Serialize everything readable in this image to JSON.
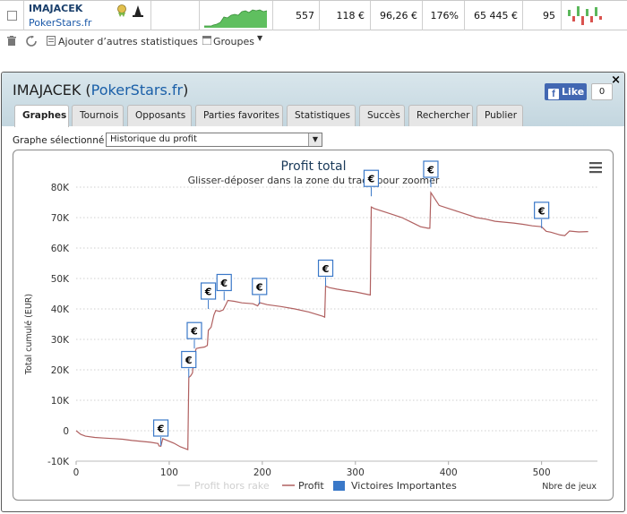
{
  "row": {
    "player_name": "IMAJACEK",
    "player_site": "PokerStars.fr",
    "games": "557",
    "avg_stake": "118 €",
    "avg_profit": "96,26 €",
    "roi": "176%",
    "total_profit": "65 445 €",
    "ability": "95",
    "sparkline_color": "#5fbf5f",
    "form_colors": [
      "#5cb85c",
      "#d9534f"
    ]
  },
  "toolbar": {
    "add_stats_label": "Ajouter d’autres statistiques",
    "groups_label": "Groupes"
  },
  "panel": {
    "title_player": "IMAJACEK",
    "title_site": "PokerStars.fr",
    "like_label": "Like",
    "like_count": "0",
    "close_glyph": "×",
    "tabs": [
      {
        "label": "Graphes",
        "active": true
      },
      {
        "label": "Tournois",
        "active": false
      },
      {
        "label": "Opposants",
        "active": false
      },
      {
        "label": "Parties favorites",
        "active": false
      },
      {
        "label": "Statistiques",
        "active": false
      },
      {
        "label": "Succès",
        "active": false
      },
      {
        "label": "Rechercher",
        "active": false
      },
      {
        "label": "Publier",
        "active": false
      }
    ],
    "graph_select_label": "Graphe sélectionné :",
    "graph_select_value": "Historique du profit"
  },
  "chart_data": {
    "type": "line",
    "title": "Profit total",
    "subtitle": "Glisser-déposer dans la zone du tracé pour zoomer",
    "xlabel": "Nbre de jeux",
    "ylabel": "Total cumulé (EUR)",
    "xlim": [
      0,
      560
    ],
    "ylim": [
      -10000,
      80000
    ],
    "x_ticks": [
      "0",
      "100",
      "200",
      "300",
      "400",
      "500"
    ],
    "y_ticks": [
      "-10K",
      "0",
      "10K",
      "20K",
      "30K",
      "40K",
      "50K",
      "60K",
      "70K",
      "80K"
    ],
    "grid": true,
    "legend_position": "bottom",
    "colors": {
      "profit": "#b06060",
      "profit_hors_rake": "#d8d8d8",
      "victoires": "#3a78c8"
    },
    "series": [
      {
        "name": "Profit",
        "points": [
          [
            0,
            0
          ],
          [
            5,
            -1200
          ],
          [
            10,
            -1800
          ],
          [
            20,
            -2200
          ],
          [
            30,
            -2400
          ],
          [
            40,
            -2600
          ],
          [
            50,
            -2800
          ],
          [
            60,
            -3200
          ],
          [
            70,
            -3500
          ],
          [
            80,
            -3800
          ],
          [
            88,
            -4200
          ],
          [
            89,
            -5000
          ],
          [
            91,
            -5100
          ],
          [
            93,
            -2600
          ],
          [
            98,
            -3200
          ],
          [
            105,
            -4100
          ],
          [
            112,
            -5300
          ],
          [
            119,
            -6100
          ],
          [
            120,
            -6200
          ],
          [
            121,
            17500
          ],
          [
            123,
            18000
          ],
          [
            125,
            19000
          ],
          [
            127,
            25000
          ],
          [
            129,
            27000
          ],
          [
            132,
            27200
          ],
          [
            138,
            27500
          ],
          [
            141,
            28000
          ],
          [
            142,
            33000
          ],
          [
            145,
            34000
          ],
          [
            148,
            38000
          ],
          [
            150,
            39500
          ],
          [
            154,
            39200
          ],
          [
            158,
            39700
          ],
          [
            161,
            41500
          ],
          [
            163,
            42800
          ],
          [
            170,
            42500
          ],
          [
            178,
            42000
          ],
          [
            190,
            41700
          ],
          [
            195,
            41000
          ],
          [
            197,
            42100
          ],
          [
            205,
            41400
          ],
          [
            220,
            40800
          ],
          [
            235,
            40000
          ],
          [
            250,
            39000
          ],
          [
            265,
            37600
          ],
          [
            267,
            37300
          ],
          [
            268,
            47500
          ],
          [
            272,
            47000
          ],
          [
            280,
            46500
          ],
          [
            290,
            46000
          ],
          [
            300,
            45600
          ],
          [
            314,
            44700
          ],
          [
            316,
            44600
          ],
          [
            317,
            73500
          ],
          [
            320,
            73000
          ],
          [
            330,
            72000
          ],
          [
            340,
            71000
          ],
          [
            350,
            70000
          ],
          [
            360,
            68500
          ],
          [
            370,
            67000
          ],
          [
            378,
            66500
          ],
          [
            380,
            66500
          ],
          [
            381,
            78200
          ],
          [
            390,
            74000
          ],
          [
            400,
            73000
          ],
          [
            410,
            72000
          ],
          [
            420,
            71000
          ],
          [
            430,
            70000
          ],
          [
            440,
            69500
          ],
          [
            450,
            68800
          ],
          [
            460,
            68500
          ],
          [
            470,
            68200
          ],
          [
            480,
            67800
          ],
          [
            490,
            67300
          ],
          [
            500,
            67000
          ],
          [
            505,
            65500
          ],
          [
            510,
            65200
          ],
          [
            520,
            64300
          ],
          [
            525,
            64100
          ],
          [
            530,
            65600
          ],
          [
            540,
            65300
          ],
          [
            550,
            65400
          ]
        ]
      },
      {
        "name": "Profit hors rake",
        "points": []
      },
      {
        "name": "Victoires Importantes",
        "points": [
          [
            91,
            -5000
          ],
          [
            121,
            17500
          ],
          [
            127,
            27000
          ],
          [
            142,
            40000
          ],
          [
            159,
            42800
          ],
          [
            197,
            41500
          ],
          [
            268,
            47500
          ],
          [
            317,
            77000
          ],
          [
            381,
            80000
          ],
          [
            500,
            66500
          ]
        ]
      }
    ],
    "flag_label": "€"
  }
}
